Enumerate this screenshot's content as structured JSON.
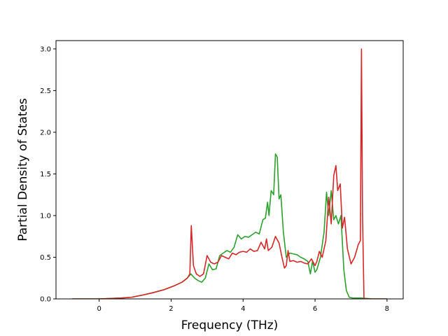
{
  "chart_data": {
    "type": "line",
    "title": "",
    "xlabel": "Frequency (THz)",
    "ylabel": "Partial Density of States",
    "xlim": [
      -1.2,
      8.45
    ],
    "ylim": [
      0.0,
      3.1
    ],
    "xticks": [
      0,
      2,
      4,
      6,
      8
    ],
    "xtick_labels": [
      "0",
      "2",
      "4",
      "6",
      "8"
    ],
    "yticks": [
      0.0,
      0.5,
      1.0,
      1.5,
      2.0,
      2.5,
      3.0
    ],
    "ytick_labels": [
      "0.0",
      "0.5",
      "1.0",
      "1.5",
      "2.0",
      "2.5",
      "3.0"
    ],
    "grid": false,
    "legend": "none",
    "series": [
      {
        "color": "#2ca02c",
        "x": [
          -0.75,
          -0.4,
          0.0,
          0.3,
          0.6,
          0.9,
          1.2,
          1.5,
          1.8,
          2.1,
          2.3,
          2.45,
          2.55,
          2.65,
          2.75,
          2.85,
          2.95,
          3.05,
          3.15,
          3.25,
          3.35,
          3.45,
          3.55,
          3.65,
          3.75,
          3.85,
          3.95,
          4.05,
          4.15,
          4.25,
          4.35,
          4.45,
          4.55,
          4.62,
          4.68,
          4.72,
          4.78,
          4.85,
          4.9,
          4.95,
          5.0,
          5.05,
          5.12,
          5.2,
          5.3,
          5.4,
          5.5,
          5.6,
          5.7,
          5.8,
          5.87,
          5.93,
          6.0,
          6.05,
          6.15,
          6.25,
          6.32,
          6.38,
          6.45,
          6.52,
          6.58,
          6.65,
          6.72,
          6.8,
          6.87,
          6.95,
          7.05,
          7.15,
          7.3,
          7.6,
          8.0
        ],
        "y": [
          0.0,
          0.0,
          0.0,
          0.005,
          0.01,
          0.02,
          0.045,
          0.075,
          0.11,
          0.16,
          0.2,
          0.25,
          0.3,
          0.25,
          0.22,
          0.2,
          0.25,
          0.42,
          0.35,
          0.36,
          0.52,
          0.55,
          0.58,
          0.56,
          0.62,
          0.77,
          0.72,
          0.75,
          0.74,
          0.77,
          0.8,
          0.78,
          0.95,
          0.97,
          1.16,
          1.0,
          1.3,
          1.25,
          1.74,
          1.7,
          1.2,
          1.25,
          0.8,
          0.5,
          0.55,
          0.54,
          0.53,
          0.5,
          0.48,
          0.45,
          0.3,
          0.45,
          0.32,
          0.35,
          0.5,
          0.8,
          1.28,
          1.0,
          1.3,
          0.95,
          1.0,
          0.9,
          1.0,
          0.35,
          0.1,
          0.02,
          0.01,
          0.01,
          0.01,
          0.0,
          0.0
        ]
      },
      {
        "color": "#d62728",
        "x": [
          -0.75,
          -0.4,
          0.0,
          0.3,
          0.6,
          0.9,
          1.2,
          1.5,
          1.8,
          2.1,
          2.3,
          2.45,
          2.52,
          2.56,
          2.62,
          2.7,
          2.8,
          2.9,
          3.0,
          3.1,
          3.2,
          3.3,
          3.4,
          3.5,
          3.6,
          3.7,
          3.8,
          3.9,
          4.0,
          4.1,
          4.2,
          4.3,
          4.4,
          4.5,
          4.6,
          4.65,
          4.7,
          4.8,
          4.9,
          5.0,
          5.08,
          5.15,
          5.2,
          5.25,
          5.3,
          5.4,
          5.5,
          5.6,
          5.7,
          5.8,
          5.9,
          6.0,
          6.05,
          6.12,
          6.2,
          6.3,
          6.38,
          6.45,
          6.52,
          6.58,
          6.63,
          6.7,
          6.76,
          6.82,
          6.9,
          7.0,
          7.1,
          7.2,
          7.26,
          7.29,
          7.32,
          7.36,
          7.5,
          8.0
        ],
        "y": [
          0.0,
          0.0,
          0.0,
          0.005,
          0.01,
          0.02,
          0.045,
          0.075,
          0.11,
          0.16,
          0.2,
          0.25,
          0.3,
          0.88,
          0.4,
          0.3,
          0.27,
          0.3,
          0.52,
          0.44,
          0.42,
          0.44,
          0.52,
          0.5,
          0.48,
          0.55,
          0.53,
          0.56,
          0.57,
          0.56,
          0.6,
          0.57,
          0.58,
          0.68,
          0.6,
          0.72,
          0.58,
          0.62,
          0.75,
          0.67,
          0.5,
          0.37,
          0.4,
          0.58,
          0.45,
          0.46,
          0.44,
          0.45,
          0.43,
          0.42,
          0.48,
          0.4,
          0.45,
          0.57,
          0.5,
          0.7,
          1.22,
          0.9,
          1.48,
          1.6,
          1.3,
          1.38,
          0.85,
          0.98,
          0.6,
          0.42,
          0.5,
          0.65,
          0.7,
          3.0,
          1.0,
          0.0,
          0.0,
          0.0
        ]
      }
    ]
  }
}
